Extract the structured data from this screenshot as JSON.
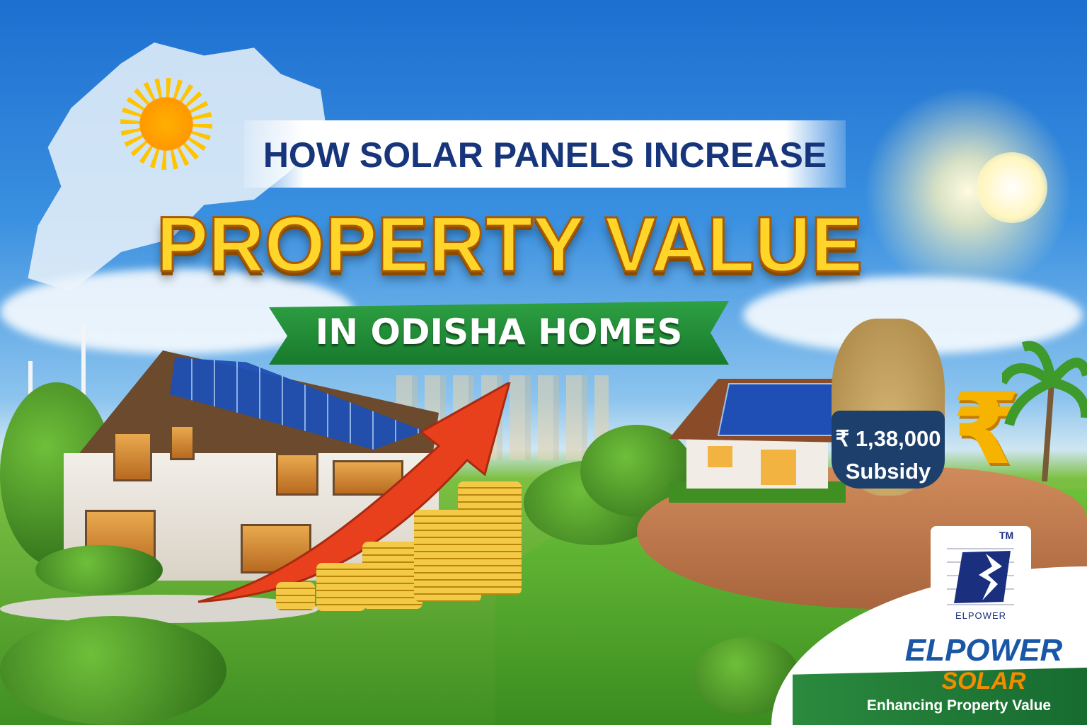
{
  "headline": {
    "line1": "HOW SOLAR PANELS INCREASE",
    "main": "PROPERTY VALUE",
    "ribbon": "IN ODISHA HOMES"
  },
  "subsidy": {
    "amount": "₹ 1,38,000",
    "label": "Subsidy",
    "currency_icon": "rupee-icon"
  },
  "logo": {
    "trademark": "TM",
    "wordmark_small": "ELPOWER",
    "brand": "ELPOWER",
    "brand_sub": "SOLAR",
    "tagline": "Enhancing Property Value"
  },
  "colors": {
    "title_navy": "#17357a",
    "title_gold": "#ffd52a",
    "ribbon_green": "#2ea043",
    "brand_blue": "#1956a6",
    "brand_orange": "#f28c00"
  }
}
